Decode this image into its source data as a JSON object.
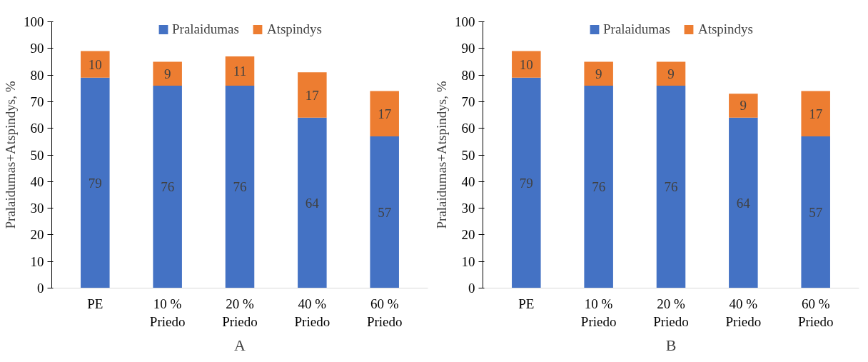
{
  "chart_data": [
    {
      "type": "bar",
      "stacked": true,
      "categories": [
        "PE",
        "10 %\nPriedo",
        "20 %\nPriedo",
        "40 %\nPriedo",
        "60 %\nPriedo"
      ],
      "ylabel": "Pralaidumas+Atspindys, %",
      "ylim": [
        0,
        100
      ],
      "yticks": [
        0,
        10,
        20,
        30,
        40,
        50,
        60,
        70,
        80,
        90,
        100
      ],
      "grid": false,
      "legend": "top",
      "data_labels": true,
      "annotations": [
        "A"
      ],
      "series": [
        {
          "name": "Pralaidumas",
          "color": "#4472c4",
          "values": [
            79,
            76,
            76,
            64,
            57
          ]
        },
        {
          "name": "Atspindys",
          "color": "#ed7d31",
          "values": [
            10,
            9,
            11,
            17,
            17
          ]
        }
      ]
    },
    {
      "type": "bar",
      "stacked": true,
      "categories": [
        "PE",
        "10 %\nPriedo",
        "20 %\nPriedo",
        "40 %\nPriedo",
        "60 %\nPriedo"
      ],
      "ylabel": "Pralaidumas+Atspindys, %",
      "ylim": [
        0,
        100
      ],
      "yticks": [
        0,
        10,
        20,
        30,
        40,
        50,
        60,
        70,
        80,
        90,
        100
      ],
      "grid": false,
      "legend": "top",
      "data_labels": true,
      "annotations": [
        "B"
      ],
      "series": [
        {
          "name": "Pralaidumas",
          "color": "#4472c4",
          "values": [
            79,
            76,
            76,
            64,
            57
          ]
        },
        {
          "name": "Atspindys",
          "color": "#ed7d31",
          "values": [
            10,
            9,
            9,
            9,
            17
          ]
        }
      ]
    }
  ]
}
